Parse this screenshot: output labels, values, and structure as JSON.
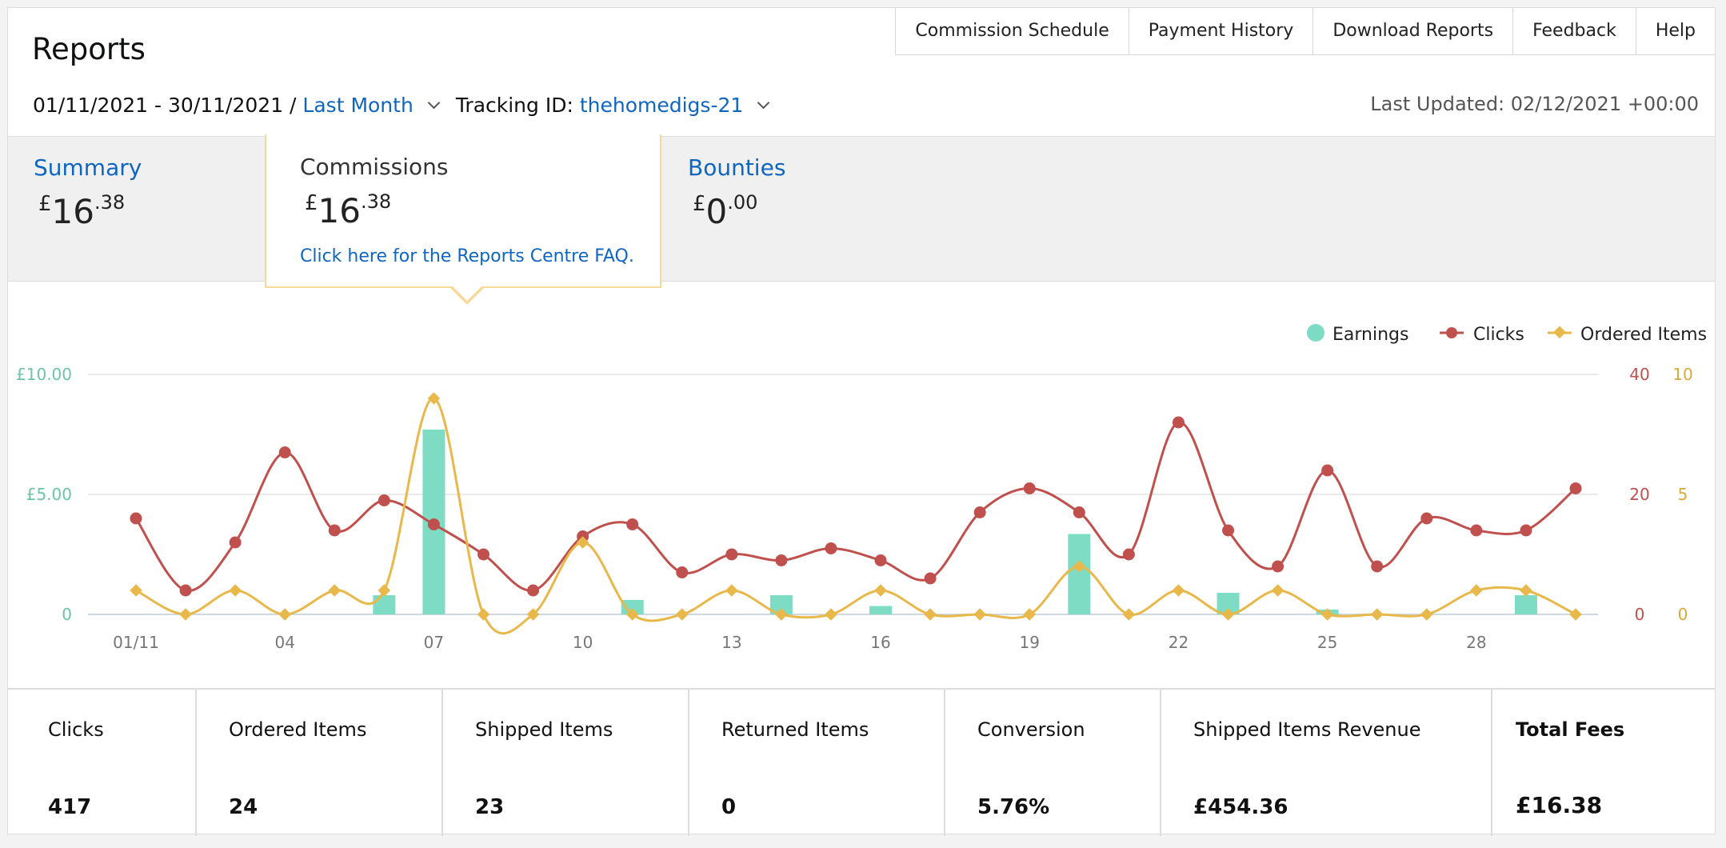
{
  "page": {
    "title": "Reports"
  },
  "topnav": [
    {
      "id": "commission-schedule",
      "label": "Commission Schedule"
    },
    {
      "id": "payment-history",
      "label": "Payment History"
    },
    {
      "id": "download-reports",
      "label": "Download Reports"
    },
    {
      "id": "feedback",
      "label": "Feedback"
    },
    {
      "id": "help",
      "label": "Help"
    }
  ],
  "filters": {
    "date_range": "01/11/2021 - 30/11/2021 /",
    "period": "Last Month",
    "tracking_label": "Tracking ID:",
    "tracking_id": "thehomedigs-21"
  },
  "last_updated": "Last Updated: 02/12/2021 +00:00",
  "tabs": {
    "summary": {
      "label": "Summary",
      "currency": "£",
      "int": "16",
      "dec": ".38"
    },
    "commissions": {
      "label": "Commissions",
      "currency": "£",
      "int": "16",
      "dec": ".38",
      "faq": "Click here for the Reports Centre FAQ."
    },
    "bounties": {
      "label": "Bounties",
      "currency": "£",
      "int": "0",
      "dec": ".00"
    }
  },
  "chart_data": {
    "type": "bar+line",
    "legend": [
      "Earnings",
      "Clicks",
      "Ordered Items"
    ],
    "legend_position": "top-right",
    "grid": true,
    "categories": [
      "01/11",
      "02",
      "03",
      "04",
      "05",
      "06",
      "07",
      "08",
      "09",
      "10",
      "11",
      "12",
      "13",
      "14",
      "15",
      "16",
      "17",
      "18",
      "19",
      "20",
      "21",
      "22",
      "23",
      "24",
      "25",
      "26",
      "27",
      "28",
      "29",
      "30"
    ],
    "x_tick_labels": [
      "01/11",
      "04",
      "07",
      "10",
      "13",
      "16",
      "19",
      "22",
      "25",
      "28"
    ],
    "earnings_axis": {
      "ticks": [
        "£10.00",
        "£5.00",
        "0"
      ],
      "ylim": [
        0,
        10
      ]
    },
    "clicks_axis": {
      "ticks": [
        "40",
        "20",
        "0"
      ],
      "ylim": [
        0,
        40
      ]
    },
    "items_axis": {
      "ticks": [
        "10",
        "5",
        "0"
      ],
      "ylim": [
        0,
        10
      ]
    },
    "colors": {
      "earnings": "#7fdcc4",
      "clicks": "#c0504d",
      "items": "#e8b84a"
    },
    "series": [
      {
        "name": "Earnings",
        "axis": "earnings",
        "kind": "bar",
        "values": [
          0,
          0,
          0,
          0,
          0,
          0.8,
          7.7,
          0,
          0,
          0,
          0.6,
          0,
          0,
          0.8,
          0,
          0.35,
          0,
          0,
          0,
          3.35,
          0,
          0,
          0.9,
          0,
          0.2,
          0,
          0,
          0,
          0.8,
          0
        ]
      },
      {
        "name": "Clicks",
        "axis": "clicks",
        "kind": "line",
        "values": [
          16,
          4,
          12,
          27,
          14,
          19,
          15,
          10,
          4,
          13,
          15,
          7,
          10,
          9,
          11,
          9,
          6,
          17,
          21,
          17,
          10,
          32,
          14,
          8,
          24,
          8,
          16,
          14,
          14,
          21
        ]
      },
      {
        "name": "Ordered Items",
        "axis": "items",
        "kind": "line",
        "values": [
          1,
          0,
          1,
          0,
          1,
          1,
          9,
          0,
          0,
          3,
          0,
          0,
          1,
          0,
          0,
          1,
          0,
          0,
          0,
          2,
          0,
          1,
          0,
          1,
          0,
          0,
          0,
          1,
          1,
          0
        ]
      }
    ]
  },
  "stats": [
    {
      "id": "clicks",
      "label": "Clicks",
      "value": "417"
    },
    {
      "id": "ordered-items",
      "label": "Ordered Items",
      "value": "24"
    },
    {
      "id": "shipped-items",
      "label": "Shipped Items",
      "value": "23"
    },
    {
      "id": "returned-items",
      "label": "Returned Items",
      "value": "0"
    },
    {
      "id": "conversion",
      "label": "Conversion",
      "value": "5.76%"
    },
    {
      "id": "shipped-items-revenue",
      "label": "Shipped Items Revenue",
      "value": "£454.36"
    },
    {
      "id": "total-fees",
      "label": "Total Fees",
      "value": "£16.38"
    }
  ]
}
